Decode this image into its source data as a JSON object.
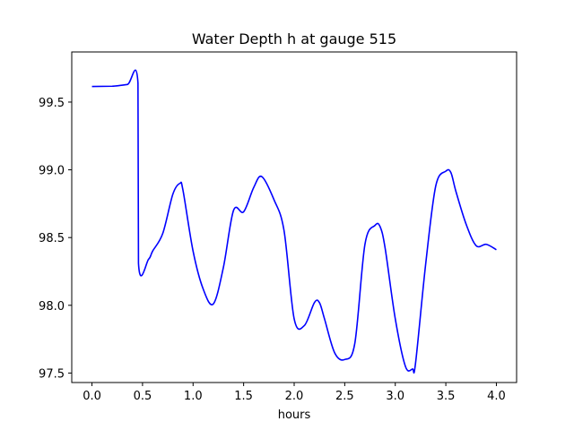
{
  "chart_data": {
    "type": "line",
    "title": "Water Depth h at gauge 515",
    "xlabel": "hours",
    "ylabel": "",
    "xlim": [
      -0.2,
      4.2
    ],
    "ylim": [
      97.43,
      99.87
    ],
    "xticks": [
      0.0,
      0.5,
      1.0,
      1.5,
      2.0,
      2.5,
      3.0,
      3.5,
      4.0
    ],
    "xtick_labels": [
      "0.0",
      "0.5",
      "1.0",
      "1.5",
      "2.0",
      "2.5",
      "3.0",
      "3.5",
      "4.0"
    ],
    "yticks": [
      97.5,
      98.0,
      98.5,
      99.0,
      99.5
    ],
    "ytick_labels": [
      "97.5",
      "98.0",
      "98.5",
      "99.0",
      "99.5"
    ],
    "grid": false,
    "series": [
      {
        "color": "#0000ff",
        "x": [
          0.0,
          0.2,
          0.35,
          0.455,
          0.46,
          0.56,
          0.6,
          0.7,
          0.8,
          0.87,
          0.9,
          1.0,
          1.1,
          1.2,
          1.3,
          1.4,
          1.5,
          1.6,
          1.68,
          1.8,
          1.9,
          2.0,
          2.1,
          2.2,
          2.25,
          2.3,
          2.4,
          2.5,
          2.6,
          2.7,
          2.8,
          2.85,
          2.9,
          3.0,
          3.1,
          3.17,
          3.2,
          3.3,
          3.4,
          3.5,
          3.55,
          3.6,
          3.7,
          3.8,
          3.9,
          4.0
        ],
        "y": [
          99.615,
          99.617,
          99.63,
          99.64,
          98.31,
          98.34,
          98.4,
          98.53,
          98.82,
          98.9,
          98.85,
          98.4,
          98.12,
          98.01,
          98.28,
          98.7,
          98.69,
          98.87,
          98.95,
          98.78,
          98.55,
          97.9,
          97.85,
          98.02,
          98.02,
          97.9,
          97.65,
          97.6,
          97.72,
          98.45,
          98.59,
          98.58,
          98.42,
          97.9,
          97.55,
          97.53,
          97.57,
          98.3,
          98.88,
          98.99,
          98.98,
          98.84,
          98.6,
          98.44,
          98.45,
          98.41
        ]
      }
    ]
  }
}
